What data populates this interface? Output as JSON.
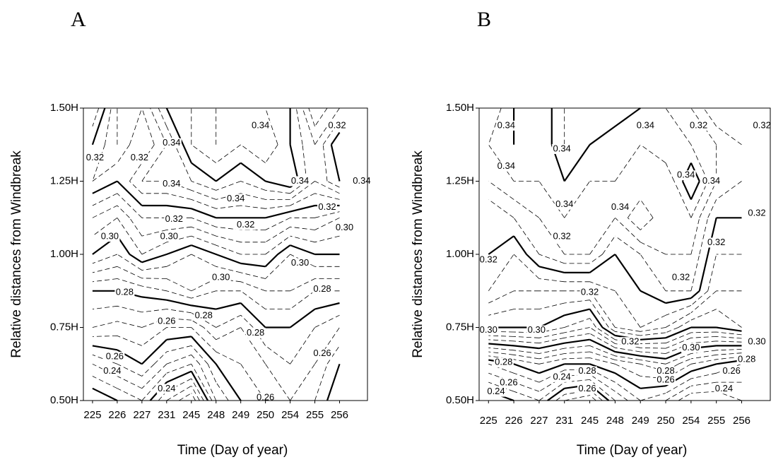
{
  "chart_data": [
    {
      "type": "contour",
      "title": "A",
      "xlabel": "Time (Day of year)",
      "ylabel": "Relative distances from Windbreak",
      "categories": [
        "225",
        "226",
        "227",
        "231",
        "245",
        "248",
        "249",
        "250",
        "254",
        "255",
        "256"
      ],
      "y": [
        0.5,
        0.625,
        0.75,
        0.875,
        1.0,
        1.125,
        1.25,
        1.375,
        1.5
      ],
      "ylim": [
        0.5,
        1.5
      ],
      "yticks": [
        {
          "value": 0.5,
          "label": "0.50H"
        },
        {
          "value": 0.75,
          "label": "0.75H"
        },
        {
          "value": 1.0,
          "label": "1.00H"
        },
        {
          "value": 1.25,
          "label": "1.25H"
        },
        {
          "value": 1.5,
          "label": "1.50H"
        }
      ],
      "z": [
        [
          0.235,
          0.24,
          0.245,
          0.23,
          0.22,
          0.25,
          0.26,
          0.265,
          0.27,
          0.265,
          0.255
        ],
        [
          0.25,
          0.255,
          0.26,
          0.25,
          0.245,
          0.26,
          0.265,
          0.27,
          0.275,
          0.27,
          0.26
        ],
        [
          0.27,
          0.268,
          0.27,
          0.265,
          0.265,
          0.275,
          0.27,
          0.28,
          0.28,
          0.275,
          0.27
        ],
        [
          0.28,
          0.28,
          0.282,
          0.285,
          0.29,
          0.285,
          0.285,
          0.29,
          0.29,
          0.285,
          0.285
        ],
        [
          0.3,
          0.295,
          0.305,
          0.3,
          0.295,
          0.3,
          0.305,
          0.305,
          0.295,
          0.3,
          0.3
        ],
        [
          0.31,
          0.305,
          0.315,
          0.315,
          0.315,
          0.32,
          0.32,
          0.32,
          0.315,
          0.315,
          0.31
        ],
        [
          0.325,
          0.32,
          0.33,
          0.33,
          0.335,
          0.34,
          0.335,
          0.34,
          0.345,
          0.33,
          0.34
        ],
        [
          0.32,
          0.33,
          0.32,
          0.33,
          0.345,
          0.35,
          0.345,
          0.35,
          0.34,
          0.33,
          0.345
        ],
        [
          0.31,
          0.33,
          0.325,
          0.34,
          0.345,
          0.35,
          0.345,
          0.345,
          0.34,
          0.32,
          0.33
        ]
      ],
      "levels": [
        0.22,
        0.225,
        0.23,
        0.235,
        0.24,
        0.245,
        0.25,
        0.255,
        0.26,
        0.265,
        0.27,
        0.275,
        0.28,
        0.285,
        0.29,
        0.295,
        0.3,
        0.305,
        0.31,
        0.315,
        0.32,
        0.325,
        0.33,
        0.335,
        0.34,
        0.345,
        0.35
      ],
      "major_levels": [
        0.24,
        0.26,
        0.28,
        0.3,
        0.32,
        0.34
      ],
      "color": "#000000",
      "contour_labels": [
        {
          "label": "0.32",
          "x": 0.1,
          "y": 1.33
        },
        {
          "label": "0.34",
          "x": 3.2,
          "y": 1.38
        },
        {
          "label": "0.34",
          "x": 6.8,
          "y": 1.44
        },
        {
          "label": "0.32",
          "x": 9.9,
          "y": 1.44
        },
        {
          "label": "0.32",
          "x": 1.9,
          "y": 1.33
        },
        {
          "label": "0.34",
          "x": 3.2,
          "y": 1.24
        },
        {
          "label": "0.34",
          "x": 5.8,
          "y": 1.19
        },
        {
          "label": "0.34",
          "x": 8.4,
          "y": 1.25
        },
        {
          "label": "0.34",
          "x": 10.9,
          "y": 1.25
        },
        {
          "label": "0.32",
          "x": 3.3,
          "y": 1.12
        },
        {
          "label": "0.32",
          "x": 6.2,
          "y": 1.1
        },
        {
          "label": "0.32",
          "x": 9.5,
          "y": 1.16
        },
        {
          "label": "0.30",
          "x": 0.7,
          "y": 1.06
        },
        {
          "label": "0.30",
          "x": 3.1,
          "y": 1.06
        },
        {
          "label": "0.30",
          "x": 10.2,
          "y": 1.09
        },
        {
          "label": "0.30",
          "x": 8.4,
          "y": 0.97
        },
        {
          "label": "0.30",
          "x": 5.2,
          "y": 0.92
        },
        {
          "label": "0.28",
          "x": 1.3,
          "y": 0.87
        },
        {
          "label": "0.28",
          "x": 4.5,
          "y": 0.79
        },
        {
          "label": "0.28",
          "x": 6.6,
          "y": 0.73
        },
        {
          "label": "0.28",
          "x": 9.3,
          "y": 0.88
        },
        {
          "label": "0.26",
          "x": 3.0,
          "y": 0.77
        },
        {
          "label": "0.26",
          "x": 0.9,
          "y": 0.65
        },
        {
          "label": "0.26",
          "x": 9.3,
          "y": 0.66
        },
        {
          "label": "0.24",
          "x": 0.8,
          "y": 0.6
        },
        {
          "label": "0.24",
          "x": 3.0,
          "y": 0.54
        },
        {
          "label": "0.26",
          "x": 7.0,
          "y": 0.51
        }
      ]
    },
    {
      "type": "contour",
      "title": "B",
      "xlabel": "Time (Day of year)",
      "ylabel": "Relative distances from Windbreak",
      "categories": [
        "225",
        "226",
        "227",
        "231",
        "245",
        "248",
        "249",
        "250",
        "254",
        "255",
        "256"
      ],
      "y": [
        0.5,
        0.625,
        0.75,
        0.875,
        1.0,
        1.125,
        1.25,
        1.375,
        1.5
      ],
      "ylim": [
        0.5,
        1.5
      ],
      "yticks": [
        {
          "value": 0.5,
          "label": "0.50H"
        },
        {
          "value": 0.75,
          "label": "0.75H"
        },
        {
          "value": 1.0,
          "label": "1.00H"
        },
        {
          "value": 1.25,
          "label": "1.25H"
        },
        {
          "value": 1.5,
          "label": "1.50H"
        }
      ],
      "z": [
        [
          0.235,
          0.24,
          0.245,
          0.23,
          0.225,
          0.245,
          0.255,
          0.25,
          0.24,
          0.24,
          0.245
        ],
        [
          0.255,
          0.26,
          0.265,
          0.26,
          0.26,
          0.265,
          0.27,
          0.275,
          0.265,
          0.26,
          0.255
        ],
        [
          0.3,
          0.3,
          0.3,
          0.295,
          0.29,
          0.31,
          0.315,
          0.31,
          0.3,
          0.3,
          0.305
        ],
        [
          0.315,
          0.31,
          0.31,
          0.31,
          0.31,
          0.315,
          0.32,
          0.325,
          0.325,
          0.31,
          0.31
        ],
        [
          0.32,
          0.315,
          0.325,
          0.33,
          0.33,
          0.32,
          0.325,
          0.33,
          0.33,
          0.315,
          0.315
        ],
        [
          0.32,
          0.325,
          0.33,
          0.335,
          0.33,
          0.33,
          0.34,
          0.33,
          0.335,
          0.32,
          0.32
        ],
        [
          0.33,
          0.335,
          0.335,
          0.34,
          0.335,
          0.335,
          0.33,
          0.33,
          0.345,
          0.33,
          0.325
        ],
        [
          0.335,
          0.34,
          0.335,
          0.345,
          0.34,
          0.335,
          0.335,
          0.34,
          0.335,
          0.33,
          0.325
        ],
        [
          0.33,
          0.34,
          0.335,
          0.345,
          0.34,
          0.345,
          0.34,
          0.335,
          0.33,
          0.32,
          0.32
        ]
      ],
      "levels": [
        0.22,
        0.225,
        0.23,
        0.235,
        0.24,
        0.245,
        0.25,
        0.255,
        0.26,
        0.265,
        0.27,
        0.275,
        0.28,
        0.285,
        0.29,
        0.295,
        0.3,
        0.305,
        0.31,
        0.315,
        0.32,
        0.325,
        0.33,
        0.335,
        0.34,
        0.345,
        0.35
      ],
      "major_levels": [
        0.24,
        0.26,
        0.28,
        0.3,
        0.32,
        0.34
      ],
      "color": "#000000",
      "contour_labels": [
        {
          "label": "0.34",
          "x": 0.7,
          "y": 1.44
        },
        {
          "label": "0.34",
          "x": 2.9,
          "y": 1.36
        },
        {
          "label": "0.34",
          "x": 6.2,
          "y": 1.44
        },
        {
          "label": "0.32",
          "x": 8.3,
          "y": 1.44
        },
        {
          "label": "0.32",
          "x": 10.8,
          "y": 1.44
        },
        {
          "label": "0.34",
          "x": 0.7,
          "y": 1.3
        },
        {
          "label": "0.34",
          "x": 7.8,
          "y": 1.27
        },
        {
          "label": "0.34",
          "x": 8.8,
          "y": 1.25
        },
        {
          "label": "0.34",
          "x": 3.0,
          "y": 1.17
        },
        {
          "label": "0.34",
          "x": 5.2,
          "y": 1.16
        },
        {
          "label": "0.32",
          "x": 10.6,
          "y": 1.14
        },
        {
          "label": "0.32",
          "x": 2.9,
          "y": 1.06
        },
        {
          "label": "0.32",
          "x": 9.0,
          "y": 1.04
        },
        {
          "label": "0.32",
          "x": 0.0,
          "y": 0.98
        },
        {
          "label": "0.32",
          "x": 4.0,
          "y": 0.87
        },
        {
          "label": "0.32",
          "x": 7.6,
          "y": 0.92
        },
        {
          "label": "0.32",
          "x": 5.6,
          "y": 0.7
        },
        {
          "label": "0.30",
          "x": 0.0,
          "y": 0.74
        },
        {
          "label": "0.30",
          "x": 1.9,
          "y": 0.74
        },
        {
          "label": "0.30",
          "x": 8.0,
          "y": 0.68
        },
        {
          "label": "0.30",
          "x": 10.6,
          "y": 0.7
        },
        {
          "label": "0.28",
          "x": 0.6,
          "y": 0.63
        },
        {
          "label": "0.28",
          "x": 3.9,
          "y": 0.6
        },
        {
          "label": "0.28",
          "x": 7.0,
          "y": 0.6
        },
        {
          "label": "0.28",
          "x": 10.2,
          "y": 0.64
        },
        {
          "label": "0.26",
          "x": 0.8,
          "y": 0.56
        },
        {
          "label": "0.26",
          "x": 9.6,
          "y": 0.6
        },
        {
          "label": "0.26",
          "x": 7.0,
          "y": 0.57
        },
        {
          "label": "0.24",
          "x": 2.9,
          "y": 0.58
        },
        {
          "label": "0.26",
          "x": 3.9,
          "y": 0.54
        },
        {
          "label": "0.24",
          "x": 0.3,
          "y": 0.53
        },
        {
          "label": "0.24",
          "x": 9.3,
          "y": 0.54
        }
      ]
    }
  ]
}
